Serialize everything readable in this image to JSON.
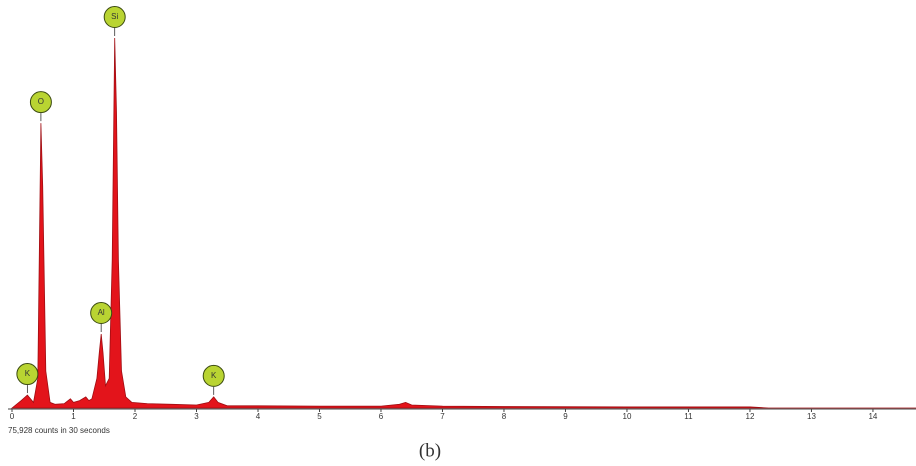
{
  "chart_data": {
    "type": "area",
    "x": [
      0,
      0.15,
      0.25,
      0.35,
      0.42,
      0.47,
      0.5,
      0.55,
      0.62,
      0.7,
      0.85,
      0.95,
      1.0,
      1.1,
      1.2,
      1.25,
      1.3,
      1.38,
      1.42,
      1.45,
      1.48,
      1.52,
      1.58,
      1.63,
      1.67,
      1.7,
      1.73,
      1.78,
      1.85,
      1.95,
      2.2,
      2.6,
      3.0,
      3.2,
      3.28,
      3.35,
      3.5,
      4.0,
      5.0,
      6.0,
      6.3,
      6.4,
      6.5,
      7.0,
      8.0,
      10.0,
      12.0,
      12.3,
      14.7
    ],
    "values": [
      0,
      2,
      3.5,
      1.5,
      8,
      77,
      60,
      10,
      1.5,
      1,
      1.2,
      2.5,
      1.5,
      2,
      3,
      2,
      2.5,
      8,
      15,
      20,
      15,
      6,
      8,
      40,
      100,
      80,
      40,
      10,
      3,
      1.5,
      1.2,
      1,
      0.8,
      1.5,
      3,
      1.5,
      0.6,
      0.6,
      0.5,
      0.5,
      1,
      1.5,
      0.8,
      0.5,
      0.4,
      0.3,
      0.3,
      0,
      0
    ],
    "color": "#e3141b",
    "xlim": [
      0,
      14.7
    ],
    "ylim": [
      0,
      100
    ],
    "xticks": [
      0,
      1,
      2,
      3,
      4,
      5,
      6,
      7,
      8,
      9,
      10,
      11,
      12,
      13,
      14
    ],
    "annotations": [
      {
        "text": "K",
        "x": 0.25
      },
      {
        "text": "O",
        "x": 0.47
      },
      {
        "text": "Si",
        "x": 1.67
      },
      {
        "text": "Al",
        "x": 1.45
      },
      {
        "text": "K",
        "x": 3.28
      }
    ],
    "footnote": "75,928 counts in 30 seconds",
    "caption": "(b)"
  }
}
